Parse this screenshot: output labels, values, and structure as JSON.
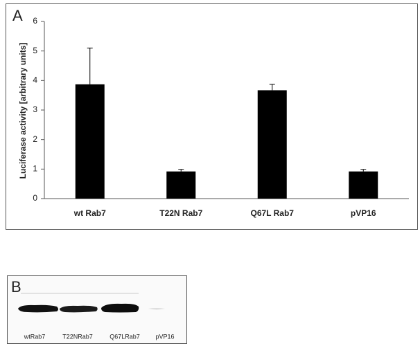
{
  "chart_data": {
    "type": "bar",
    "panel_label": "A",
    "ylabel": "Luciferase activity [arbitrary units]",
    "categories": [
      "wt Rab7",
      "T22N Rab7",
      "Q67L Rab7",
      "pVP16"
    ],
    "values": [
      3.87,
      0.92,
      3.67,
      0.92
    ],
    "errors": [
      1.23,
      0.07,
      0.2,
      0.07
    ],
    "color": "#000000",
    "ylim": [
      0,
      6
    ],
    "yticks": [
      0,
      1,
      2,
      3,
      4,
      5,
      6
    ],
    "grid": false
  },
  "blot": {
    "panel_label": "B",
    "lanes": [
      "wtRab7",
      "T22NRab7",
      "Q67LRab7",
      "pVP16"
    ]
  }
}
